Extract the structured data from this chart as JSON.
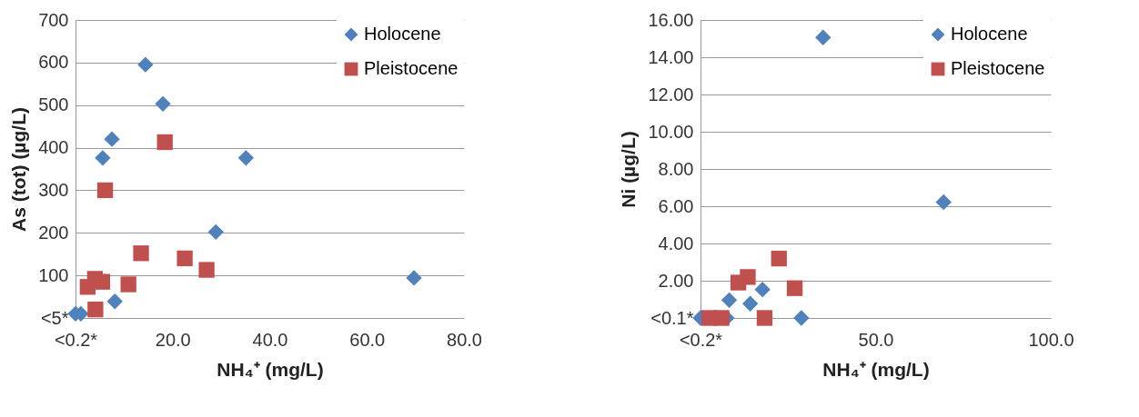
{
  "chart_data": [
    {
      "type": "scatter",
      "xlabel": "NH₄⁺ (mg/L)",
      "ylabel": "As (tot) (µg/L)",
      "legend": "top right",
      "grid": "y",
      "xlim": [
        0,
        80
      ],
      "ylim": [
        0,
        700
      ],
      "xticks": [
        {
          "value": 0,
          "label": "<0.2*"
        },
        {
          "value": 20,
          "label": "20.0"
        },
        {
          "value": 40,
          "label": "40.0"
        },
        {
          "value": 60,
          "label": "60.0"
        },
        {
          "value": 80,
          "label": "80.0"
        }
      ],
      "yticks": [
        {
          "value": 0,
          "label": "<5*"
        },
        100,
        200,
        300,
        400,
        500,
        600,
        700
      ],
      "series": [
        {
          "name": "Holocene",
          "color": "#4f81bd",
          "marker": "diamond",
          "x": [
            0,
            1.1,
            8.1,
            5.6,
            7.5,
            14.4,
            18.0,
            35.1,
            28.9,
            69.7
          ],
          "values": [
            10,
            10,
            39,
            376,
            420,
            595,
            503,
            376,
            202,
            94
          ]
        },
        {
          "name": "Pleistocene",
          "color": "#c0504d",
          "marker": "square",
          "x": [
            2.5,
            4.0,
            5.5,
            4.1,
            6.1,
            10.9,
            13.5,
            18.4,
            22.5,
            27.0
          ],
          "values": [
            73,
            92,
            85,
            20,
            300,
            79,
            152,
            413,
            140,
            113
          ]
        }
      ]
    },
    {
      "type": "scatter",
      "xlabel": "NH₄⁺ (mg/L)",
      "ylabel": "Ni (µg/L)",
      "legend": "top right",
      "grid": "y",
      "xlim": [
        0,
        100
      ],
      "ylim": [
        0,
        16
      ],
      "xticks": [
        {
          "value": 0,
          "label": "<0.2*"
        },
        {
          "value": 50,
          "label": "50.0"
        },
        {
          "value": 100,
          "label": "100.0"
        }
      ],
      "yticks": [
        {
          "value": 0,
          "label": "<0.1*"
        },
        {
          "value": 2,
          "label": "2.00"
        },
        {
          "value": 4,
          "label": "4.00"
        },
        {
          "value": 6,
          "label": "6.00"
        },
        {
          "value": 8,
          "label": "8.00"
        },
        {
          "value": 10,
          "label": "10.00"
        },
        {
          "value": 12,
          "label": "12.00"
        },
        {
          "value": 14,
          "label": "14.00"
        },
        {
          "value": 16,
          "label": "16.00"
        }
      ],
      "series": [
        {
          "name": "Holocene",
          "color": "#4f81bd",
          "marker": "diamond",
          "x": [
            0,
            7.5,
            8.2,
            14.2,
            17.7,
            28.8,
            35.0,
            69.4
          ],
          "values": [
            0,
            0,
            0.96,
            0.77,
            1.53,
            0,
            15.06,
            6.22
          ]
        },
        {
          "name": "Pleistocene",
          "color": "#c0504d",
          "marker": "square",
          "x": [
            2.5,
            4.5,
            6.0,
            10.8,
            13.5,
            22.4,
            26.9,
            18.3
          ],
          "values": [
            0,
            null,
            0,
            1.9,
            2.2,
            3.19,
            1.6,
            0
          ]
        }
      ]
    }
  ]
}
